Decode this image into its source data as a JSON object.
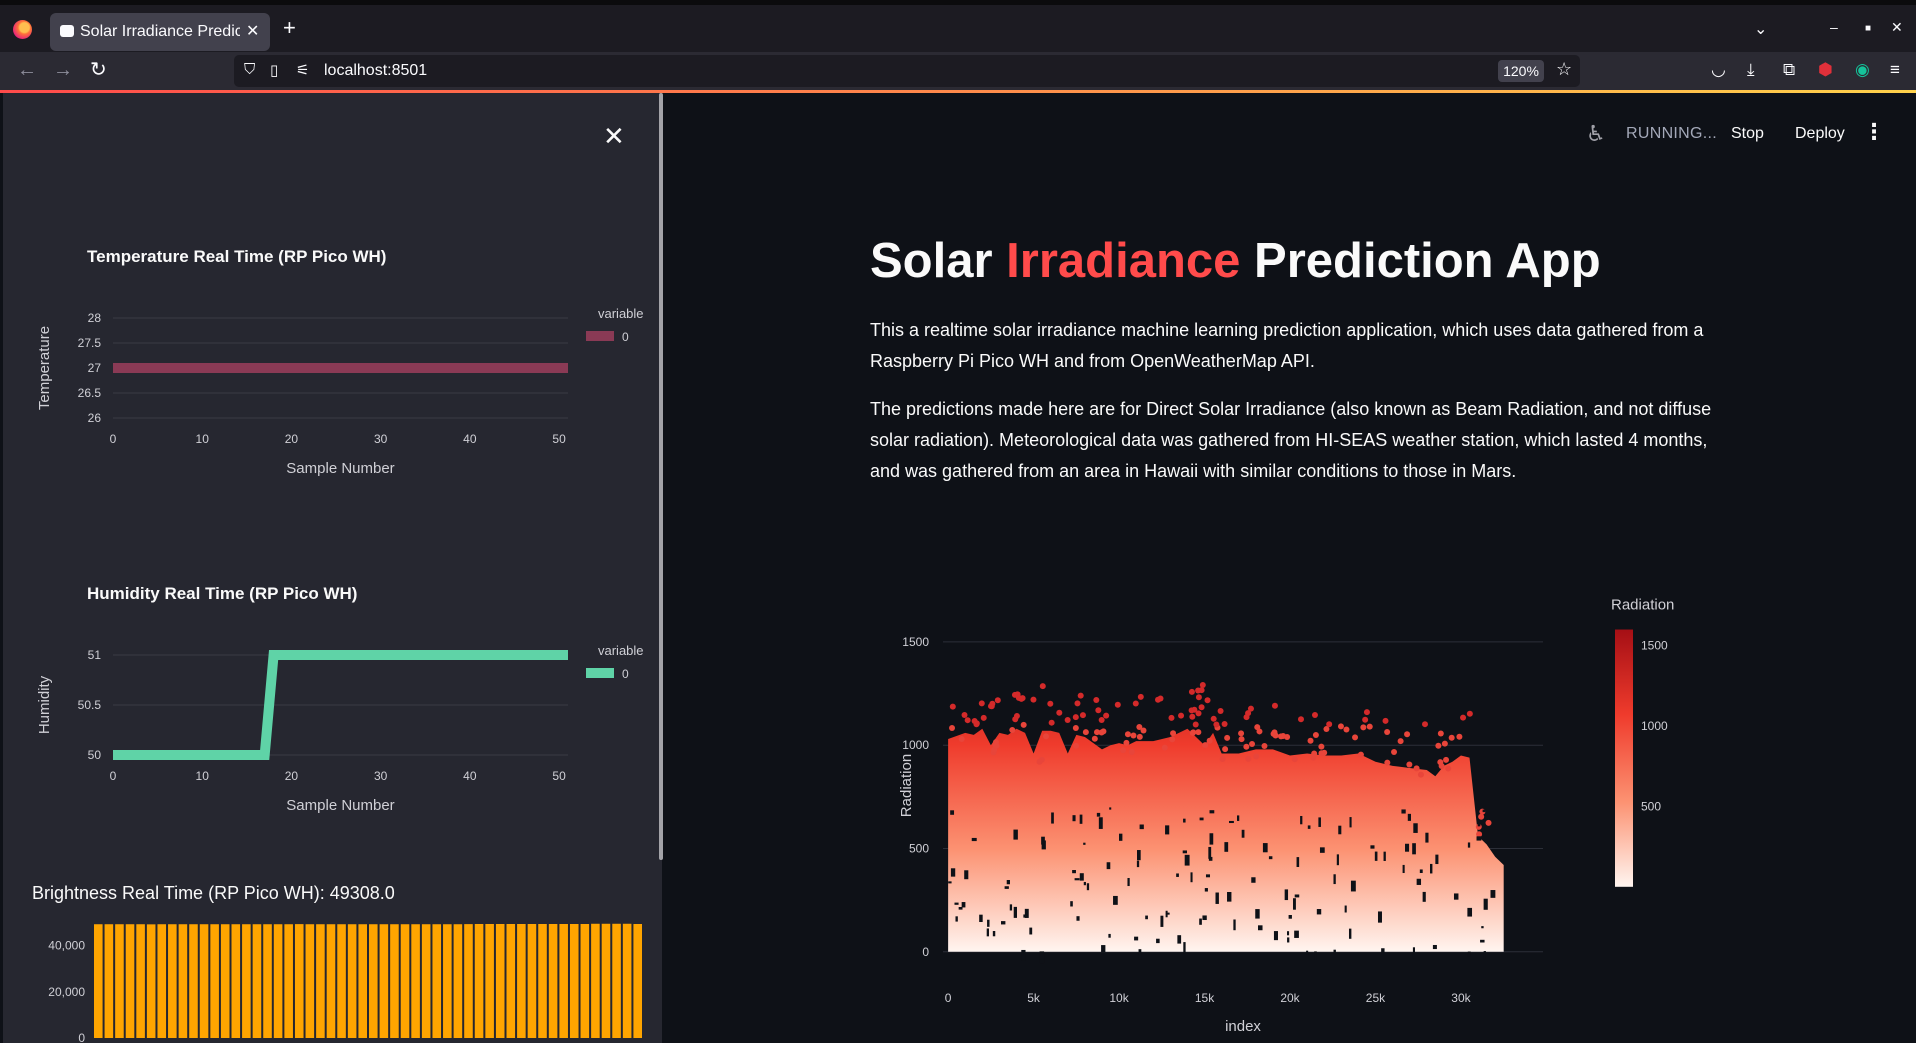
{
  "browser": {
    "tab_title": "Solar Irradiance Predict",
    "new_tab": "+",
    "tab_close": "✕",
    "url": "localhost:8501",
    "zoom": "120%"
  },
  "toolbar": {
    "status": "RUNNING...",
    "stop_label": "Stop",
    "deploy_label": "Deploy"
  },
  "sidebar": {
    "close": "✕",
    "temperature_chart": {
      "title": "Temperature Real Time (RP Pico WH)",
      "ylabel": "Temperature",
      "xlabel": "Sample Number",
      "legend_title": "variable",
      "legend_entry": "0",
      "color": "#8a3a55"
    },
    "humidity_chart": {
      "title": "Humidity Real Time (RP Pico WH)",
      "ylabel": "Humidity",
      "xlabel": "Sample Number",
      "legend_title": "variable",
      "legend_entry": "0",
      "color": "#5fd3a7"
    },
    "brightness_label": "Brightness Real Time (RP Pico WH): 49308.0",
    "brightness_color": "#ffa500"
  },
  "main": {
    "title_part1": "Solar ",
    "title_accent": "Irradiance",
    "title_part2": " Prediction App",
    "para1": "This a realtime solar irradiance machine learning prediction application, which uses data gathered from a Raspberry Pi Pico WH and from OpenWeatherMap API.",
    "para2": "The predictions made here are for Direct Solar Irradiance (also known as Beam Radiation, and not diffuse solar radiation). Meteorological data was gathered from HI-SEAS weather station, which lasted 4 months, and was gathered from an area in Hawaii with similar conditions to those in Mars."
  },
  "chart_data": [
    {
      "type": "line",
      "title": "Temperature Real Time (RP Pico WH)",
      "xlabel": "Sample Number",
      "ylabel": "Temperature",
      "xlim": [
        0,
        51
      ],
      "ylim": [
        26,
        28
      ],
      "x_ticks": [
        "0",
        "10",
        "20",
        "30",
        "40",
        "50"
      ],
      "y_ticks": [
        "26",
        "26.5",
        "27",
        "27.5",
        "28"
      ],
      "series": [
        {
          "name": "0",
          "x": [
            0,
            51
          ],
          "values": [
            27,
            27
          ]
        }
      ]
    },
    {
      "type": "line",
      "title": "Humidity Real Time (RP Pico WH)",
      "xlabel": "Sample Number",
      "ylabel": "Humidity",
      "xlim": [
        0,
        51
      ],
      "ylim": [
        50,
        51
      ],
      "x_ticks": [
        "0",
        "10",
        "20",
        "30",
        "40",
        "50"
      ],
      "y_ticks": [
        "50",
        "50.5",
        "51"
      ],
      "series": [
        {
          "name": "0",
          "x": [
            0,
            17,
            18,
            51
          ],
          "values": [
            50,
            50,
            51,
            51
          ]
        }
      ]
    },
    {
      "type": "bar",
      "title": "Brightness Real Time (RP Pico WH): 49308.0",
      "ylim": [
        0,
        52000
      ],
      "y_ticks": [
        "0",
        "20,000",
        "40,000"
      ],
      "values": [
        49300,
        49300,
        49300,
        49300,
        49300,
        49250,
        49300,
        49300,
        49300,
        49300,
        49300,
        49300,
        49300,
        49300,
        49300,
        49300,
        49300,
        49300,
        49300,
        49350,
        49300,
        49300,
        49300,
        49300,
        49300,
        49300,
        49300,
        49300,
        49300,
        49300,
        49300,
        49300,
        49300,
        49300,
        49300,
        49350,
        49400,
        49400,
        49400,
        49400,
        49400,
        49400,
        49400,
        49400,
        49400,
        49400,
        49400,
        49500,
        49500,
        49500,
        49500,
        49400
      ]
    },
    {
      "type": "scatter",
      "xlabel": "index",
      "ylabel": "Radiation",
      "xlim": [
        -300,
        34800
      ],
      "ylim": [
        -30,
        1640
      ],
      "x_ticks": [
        0,
        5000,
        10000,
        15000,
        20000,
        25000,
        30000
      ],
      "x_tick_labels": [
        "0",
        "5k",
        "10k",
        "15k",
        "20k",
        "25k",
        "30k"
      ],
      "y_ticks": [
        0,
        500,
        1000,
        1500
      ],
      "colorbar_title": "Radiation",
      "colorbar_ticks": [
        "500",
        "1000",
        "1500"
      ],
      "colorscale": [
        "#fff5f0",
        "#fc9272",
        "#ef3b2c",
        "#a50f15"
      ],
      "point_count_approx": 32686,
      "envelope": [
        [
          0,
          1030
        ],
        [
          1000,
          1060
        ],
        [
          1500,
          1050
        ],
        [
          2000,
          1080
        ],
        [
          2500,
          1000
        ],
        [
          3000,
          1060
        ],
        [
          3500,
          1050
        ],
        [
          4000,
          1080
        ],
        [
          4500,
          1060
        ],
        [
          5000,
          960
        ],
        [
          5500,
          1070
        ],
        [
          6000,
          1070
        ],
        [
          6500,
          1060
        ],
        [
          7000,
          960
        ],
        [
          7500,
          1050
        ],
        [
          8000,
          1040
        ],
        [
          8500,
          1010
        ],
        [
          9000,
          980
        ],
        [
          9500,
          1000
        ],
        [
          10000,
          1010
        ],
        [
          10500,
          1000
        ],
        [
          11000,
          1020
        ],
        [
          12000,
          1020
        ],
        [
          13000,
          1040
        ],
        [
          14000,
          1080
        ],
        [
          15000,
          1000
        ],
        [
          15500,
          1060
        ],
        [
          16000,
          960
        ],
        [
          17000,
          960
        ],
        [
          18000,
          980
        ],
        [
          19000,
          980
        ],
        [
          20000,
          950
        ],
        [
          21000,
          960
        ],
        [
          22000,
          950
        ],
        [
          23000,
          950
        ],
        [
          24000,
          960
        ],
        [
          25000,
          920
        ],
        [
          26000,
          900
        ],
        [
          27000,
          890
        ],
        [
          28000,
          880
        ],
        [
          28500,
          850
        ],
        [
          29000,
          900
        ],
        [
          29500,
          920
        ],
        [
          30000,
          950
        ],
        [
          30500,
          940
        ],
        [
          31000,
          560
        ],
        [
          31500,
          520
        ],
        [
          32000,
          460
        ],
        [
          32500,
          420
        ]
      ]
    }
  ]
}
